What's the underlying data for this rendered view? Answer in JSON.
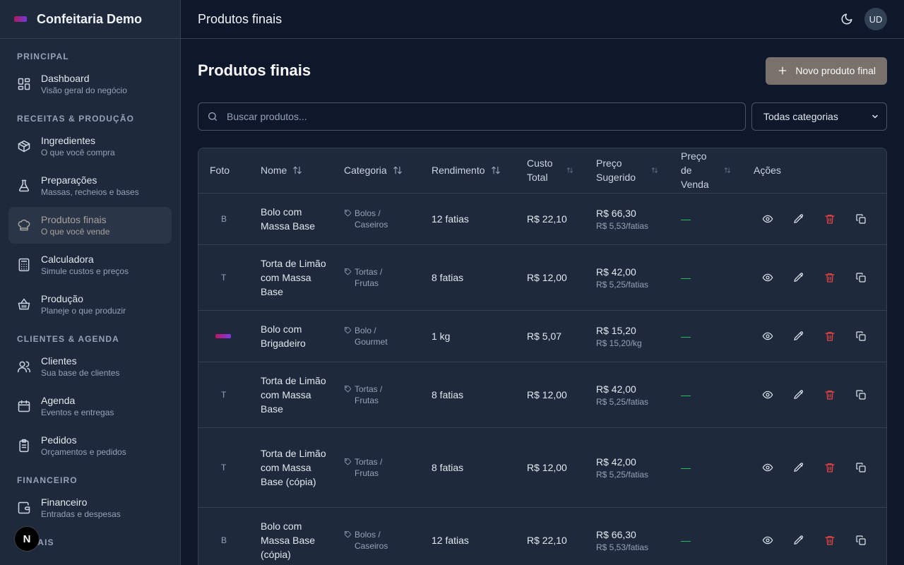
{
  "app": {
    "name": "Confeitaria Demo"
  },
  "sidebar": {
    "sections": [
      {
        "title": "PRINCIPAL",
        "items": [
          {
            "label": "Dashboard",
            "sub": "Visão geral do negócio",
            "icon": "dashboard-icon"
          }
        ]
      },
      {
        "title": "RECEITAS & PRODUÇÃO",
        "items": [
          {
            "label": "Ingredientes",
            "sub": "O que você compra",
            "icon": "box-icon"
          },
          {
            "label": "Preparações",
            "sub": "Massas, recheios e bases",
            "icon": "flask-icon"
          },
          {
            "label": "Produtos finais",
            "sub": "O que você vende",
            "icon": "chef-hat-icon",
            "active": true
          },
          {
            "label": "Calculadora",
            "sub": "Simule custos e preços",
            "icon": "calculator-icon"
          },
          {
            "label": "Produção",
            "sub": "Planeje o que produzir",
            "icon": "basket-icon"
          }
        ]
      },
      {
        "title": "CLIENTES & AGENDA",
        "items": [
          {
            "label": "Clientes",
            "sub": "Sua base de clientes",
            "icon": "users-icon"
          },
          {
            "label": "Agenda",
            "sub": "Eventos e entregas",
            "icon": "calendar-icon"
          },
          {
            "label": "Pedidos",
            "sub": "Orçamentos e pedidos",
            "icon": "clipboard-icon"
          }
        ]
      },
      {
        "title": "FINANCEIRO",
        "items": [
          {
            "label": "Financeiro",
            "sub": "Entradas e despesas",
            "icon": "wallet-icon"
          }
        ]
      },
      {
        "title": "CANAIS",
        "items": []
      }
    ]
  },
  "topbar": {
    "title": "Produtos finais",
    "avatar": "UD"
  },
  "badge": {
    "letter": "N"
  },
  "page": {
    "title": "Produtos finais",
    "new_button": "Novo produto final",
    "search_placeholder": "Buscar produtos...",
    "category_select": "Todas categorias"
  },
  "table": {
    "headers": {
      "foto": "Foto",
      "nome": "Nome",
      "categoria": "Categoria",
      "rendimento": "Rendimento",
      "custo": "Custo Total",
      "sugerido": "Preço Sugerido",
      "venda": "Preço de Venda",
      "acoes": "Ações"
    },
    "rows": [
      {
        "foto": "B",
        "nome": "Bolo com Massa Base",
        "cat1": "Bolos /",
        "cat2": "Caseiros",
        "rendimento": "12 fatias",
        "custo": "R$ 22,10",
        "sugerido": "R$ 66,30",
        "sugerido_sub": "R$ 5,53/fatias",
        "venda": "—"
      },
      {
        "foto": "T",
        "nome": "Torta de Limão com Massa Base",
        "cat1": "Tortas /",
        "cat2": "Frutas",
        "rendimento": "8 fatias",
        "custo": "R$ 12,00",
        "sugerido": "R$ 42,00",
        "sugerido_sub": "R$ 5,25/fatias",
        "venda": "—"
      },
      {
        "foto": "",
        "foto_logo": true,
        "nome": "Bolo com Brigadeiro",
        "cat1": "Bolo /",
        "cat2": "Gourmet",
        "rendimento": "1 kg",
        "custo": "R$ 5,07",
        "sugerido": "R$ 15,20",
        "sugerido_sub": "R$ 15,20/kg",
        "venda": "—"
      },
      {
        "foto": "T",
        "nome": "Torta de Limão com Massa Base",
        "cat1": "Tortas /",
        "cat2": "Frutas",
        "rendimento": "8 fatias",
        "custo": "R$ 12,00",
        "sugerido": "R$ 42,00",
        "sugerido_sub": "R$ 5,25/fatias",
        "venda": "—"
      },
      {
        "foto": "T",
        "nome": "Torta de Limão com Massa Base (cópia)",
        "cat1": "Tortas /",
        "cat2": "Frutas",
        "rendimento": "8 fatias",
        "custo": "R$ 12,00",
        "sugerido": "R$ 42,00",
        "sugerido_sub": "R$ 5,25/fatias",
        "venda": "—"
      },
      {
        "foto": "B",
        "nome": "Bolo com Massa Base (cópia)",
        "cat1": "Bolos /",
        "cat2": "Caseiros",
        "rendimento": "12 fatias",
        "custo": "R$ 22,10",
        "sugerido": "R$ 66,30",
        "sugerido_sub": "R$ 5,53/fatias",
        "venda": "—"
      }
    ]
  },
  "colors": {
    "accent": "#78716c",
    "danger": "#ef4444",
    "success": "#22c55e",
    "background": "#0f172a",
    "panel": "#1e293b"
  }
}
